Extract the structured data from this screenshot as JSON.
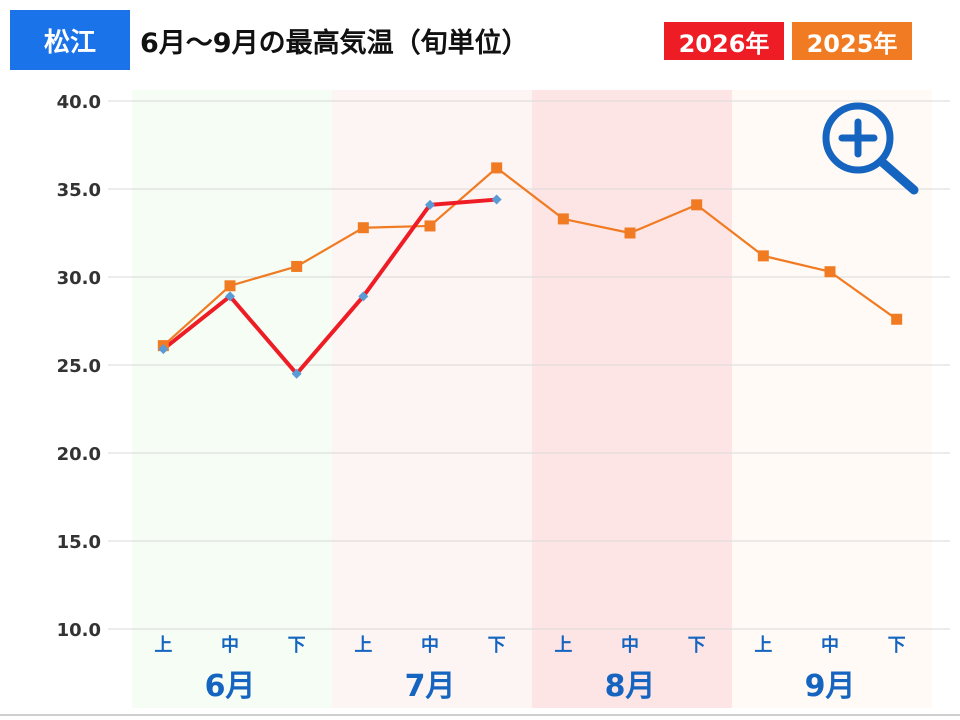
{
  "header": {
    "city": "松江",
    "title": "6月～9月の最高気温（旬単位）",
    "legend_2026": "2026年",
    "legend_2025": "2025年"
  },
  "colors": {
    "city_badge": "#1a73e8",
    "series_2026": "#ee1c25",
    "series_2026_marker": "#5b9bd5",
    "series_2025": "#f07b22",
    "month_label": "#1565c0",
    "band_june": "#f5fdf5",
    "band_july": "#fdf4f4",
    "band_august": "#fde5e6",
    "band_september": "#fffaf5"
  },
  "chart_data": {
    "type": "line",
    "categories": [
      "上",
      "中",
      "下",
      "上",
      "中",
      "下",
      "上",
      "中",
      "下",
      "上",
      "中",
      "下"
    ],
    "months": [
      "6月",
      "7月",
      "8月",
      "9月"
    ],
    "ylim": [
      10,
      40
    ],
    "yticks": [
      "40.0",
      "35.0",
      "30.0",
      "25.0",
      "20.0",
      "15.0",
      "10.0"
    ],
    "grid": true,
    "series": [
      {
        "name": "2026年",
        "values": [
          25.9,
          28.9,
          24.5,
          28.9,
          34.1,
          34.4,
          null,
          null,
          null,
          null,
          null,
          null
        ]
      },
      {
        "name": "2025年",
        "values": [
          26.1,
          29.5,
          30.6,
          32.8,
          32.9,
          36.2,
          33.3,
          32.5,
          34.1,
          31.2,
          30.3,
          27.6
        ]
      }
    ]
  },
  "controls": {
    "zoom_icon": "zoom-in-magnifier-icon"
  }
}
